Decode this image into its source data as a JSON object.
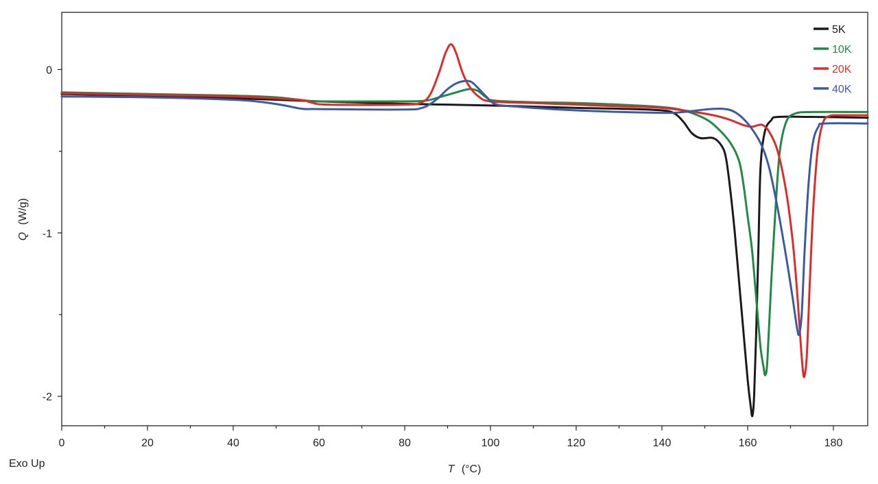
{
  "annotation": "Exo Up",
  "chart_data": {
    "type": "line",
    "xlabel_symbol": "T",
    "xlabel_unit": "(°C)",
    "ylabel_symbol": "Q",
    "ylabel_unit": "(W/g)",
    "xlim": [
      0,
      188
    ],
    "ylim": [
      -2.18,
      0.35
    ],
    "x_ticks": [
      0,
      20,
      40,
      60,
      80,
      100,
      120,
      140,
      160,
      180
    ],
    "y_ticks": [
      0,
      -1,
      -2
    ],
    "grid": false,
    "legend_position": "top-right",
    "series": [
      {
        "name": "5K",
        "color": "#1a1a1a",
        "points": [
          [
            0,
            -0.15
          ],
          [
            20,
            -0.16
          ],
          [
            40,
            -0.175
          ],
          [
            60,
            -0.195
          ],
          [
            80,
            -0.21
          ],
          [
            100,
            -0.22
          ],
          [
            120,
            -0.235
          ],
          [
            130,
            -0.24
          ],
          [
            140,
            -0.25
          ],
          [
            143,
            -0.27
          ],
          [
            145,
            -0.32
          ],
          [
            147,
            -0.39
          ],
          [
            149,
            -0.42
          ],
          [
            152,
            -0.42
          ],
          [
            154,
            -0.47
          ],
          [
            155,
            -0.55
          ],
          [
            156,
            -0.75
          ],
          [
            157,
            -1.0
          ],
          [
            158,
            -1.3
          ],
          [
            159,
            -1.6
          ],
          [
            160,
            -1.9
          ],
          [
            160.7,
            -2.06
          ],
          [
            161.1,
            -2.12
          ],
          [
            161.5,
            -2.0
          ],
          [
            162,
            -1.6
          ],
          [
            162.5,
            -1.1
          ],
          [
            163,
            -0.6
          ],
          [
            164,
            -0.38
          ],
          [
            165.5,
            -0.31
          ],
          [
            167,
            -0.29
          ],
          [
            175,
            -0.29
          ],
          [
            188,
            -0.295
          ]
        ]
      },
      {
        "name": "10K",
        "color": "#1e8a43",
        "points": [
          [
            0,
            -0.14
          ],
          [
            20,
            -0.15
          ],
          [
            40,
            -0.16
          ],
          [
            50,
            -0.17
          ],
          [
            57,
            -0.19
          ],
          [
            60,
            -0.195
          ],
          [
            80,
            -0.195
          ],
          [
            85,
            -0.19
          ],
          [
            88,
            -0.17
          ],
          [
            92,
            -0.14
          ],
          [
            95,
            -0.12
          ],
          [
            97,
            -0.13
          ],
          [
            99,
            -0.17
          ],
          [
            101,
            -0.19
          ],
          [
            110,
            -0.2
          ],
          [
            120,
            -0.205
          ],
          [
            130,
            -0.215
          ],
          [
            140,
            -0.23
          ],
          [
            145,
            -0.25
          ],
          [
            150,
            -0.3
          ],
          [
            153,
            -0.36
          ],
          [
            156,
            -0.45
          ],
          [
            158,
            -0.56
          ],
          [
            159,
            -0.7
          ],
          [
            160,
            -0.9
          ],
          [
            161,
            -1.1
          ],
          [
            162,
            -1.4
          ],
          [
            163,
            -1.7
          ],
          [
            163.7,
            -1.82
          ],
          [
            164.1,
            -1.87
          ],
          [
            164.6,
            -1.78
          ],
          [
            165.5,
            -1.3
          ],
          [
            166.5,
            -0.85
          ],
          [
            167.5,
            -0.5
          ],
          [
            169,
            -0.32
          ],
          [
            171,
            -0.27
          ],
          [
            175,
            -0.26
          ],
          [
            188,
            -0.26
          ]
        ]
      },
      {
        "name": "20K",
        "color": "#e02a2a",
        "points": [
          [
            0,
            -0.145
          ],
          [
            20,
            -0.155
          ],
          [
            40,
            -0.165
          ],
          [
            55,
            -0.185
          ],
          [
            58,
            -0.2
          ],
          [
            62,
            -0.215
          ],
          [
            80,
            -0.215
          ],
          [
            84,
            -0.2
          ],
          [
            86,
            -0.15
          ],
          [
            88,
            -0.02
          ],
          [
            89.5,
            0.1
          ],
          [
            90.8,
            0.155
          ],
          [
            92,
            0.1
          ],
          [
            93.5,
            -0.02
          ],
          [
            95,
            -0.1
          ],
          [
            97,
            -0.16
          ],
          [
            100,
            -0.195
          ],
          [
            110,
            -0.205
          ],
          [
            120,
            -0.215
          ],
          [
            130,
            -0.225
          ],
          [
            140,
            -0.235
          ],
          [
            150,
            -0.27
          ],
          [
            155,
            -0.3
          ],
          [
            159,
            -0.34
          ],
          [
            161,
            -0.35
          ],
          [
            162.5,
            -0.34
          ],
          [
            163.5,
            -0.34
          ],
          [
            165,
            -0.38
          ],
          [
            167,
            -0.5
          ],
          [
            169,
            -0.75
          ],
          [
            170.5,
            -1.05
          ],
          [
            171.5,
            -1.35
          ],
          [
            172.3,
            -1.65
          ],
          [
            172.8,
            -1.82
          ],
          [
            173.2,
            -1.88
          ],
          [
            173.8,
            -1.75
          ],
          [
            174.5,
            -1.3
          ],
          [
            175.3,
            -0.85
          ],
          [
            176.3,
            -0.5
          ],
          [
            177.5,
            -0.33
          ],
          [
            179,
            -0.285
          ],
          [
            182,
            -0.28
          ],
          [
            188,
            -0.28
          ]
        ]
      },
      {
        "name": "40K",
        "color": "#3a5ba0",
        "points": [
          [
            0,
            -0.165
          ],
          [
            20,
            -0.17
          ],
          [
            40,
            -0.185
          ],
          [
            47,
            -0.2
          ],
          [
            52,
            -0.22
          ],
          [
            56,
            -0.24
          ],
          [
            60,
            -0.242
          ],
          [
            80,
            -0.245
          ],
          [
            84,
            -0.235
          ],
          [
            86,
            -0.21
          ],
          [
            88,
            -0.17
          ],
          [
            90,
            -0.12
          ],
          [
            92,
            -0.085
          ],
          [
            94,
            -0.07
          ],
          [
            95.5,
            -0.075
          ],
          [
            97,
            -0.11
          ],
          [
            99,
            -0.165
          ],
          [
            101,
            -0.21
          ],
          [
            105,
            -0.225
          ],
          [
            120,
            -0.25
          ],
          [
            140,
            -0.265
          ],
          [
            145,
            -0.26
          ],
          [
            150,
            -0.245
          ],
          [
            154,
            -0.24
          ],
          [
            157,
            -0.26
          ],
          [
            160,
            -0.33
          ],
          [
            163,
            -0.45
          ],
          [
            165,
            -0.6
          ],
          [
            167,
            -0.85
          ],
          [
            169,
            -1.15
          ],
          [
            170.5,
            -1.4
          ],
          [
            171.5,
            -1.58
          ],
          [
            172,
            -1.62
          ],
          [
            172.6,
            -1.5
          ],
          [
            173.3,
            -1.1
          ],
          [
            174.2,
            -0.7
          ],
          [
            175.2,
            -0.45
          ],
          [
            176.5,
            -0.35
          ],
          [
            178,
            -0.33
          ],
          [
            188,
            -0.33
          ]
        ]
      }
    ]
  }
}
